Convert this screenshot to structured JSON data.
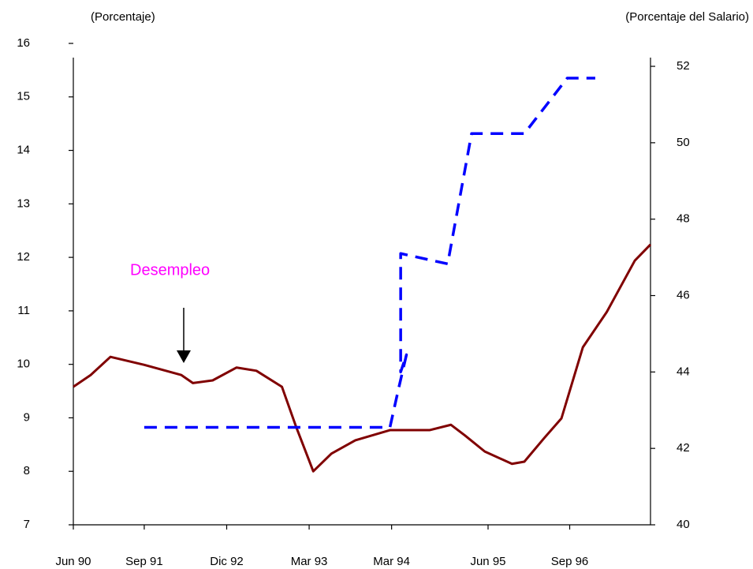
{
  "chart_data": {
    "type": "line",
    "y_label": "(Porcentaje)",
    "y2_label": "(Porcentaje del Salario)",
    "annotation": "Desempleo",
    "xlim": [
      0,
      7
    ],
    "xticks": [
      {
        "value": 0,
        "label": "Jun 90"
      },
      {
        "value": 0.86,
        "label": "Sep 91"
      },
      {
        "value": 1.86,
        "label": "Dic 92"
      },
      {
        "value": 2.86,
        "label": "Mar 93"
      },
      {
        "value": 3.86,
        "label": "Mar 94"
      },
      {
        "value": 5.03,
        "label": "Jun 95"
      },
      {
        "value": 6.02,
        "label": "Sep 96"
      }
    ],
    "ylim": [
      7,
      16
    ],
    "yticks": [
      7,
      8,
      9,
      10,
      11,
      12,
      13,
      14,
      15,
      16
    ],
    "y2lim": [
      40,
      52.6
    ],
    "y2ticks": [
      40,
      42,
      44,
      46,
      48,
      50,
      52
    ],
    "series": [
      {
        "color": "#800000",
        "style": "solid",
        "x": [
          0,
          0.21,
          0.45,
          0.86,
          1.31,
          1.45,
          1.69,
          1.98,
          2.22,
          2.53,
          2.7,
          2.91,
          3.13,
          3.42,
          3.84,
          4.32,
          4.58,
          4.75,
          4.99,
          5.32,
          5.47,
          5.71,
          5.92,
          6.18,
          6.47,
          6.81,
          7.0
        ],
        "values": [
          9.58,
          9.8,
          10.14,
          9.99,
          9.8,
          9.65,
          9.7,
          9.94,
          9.88,
          9.58,
          8.84,
          8.0,
          8.33,
          8.58,
          8.77,
          8.77,
          8.87,
          8.67,
          8.37,
          8.14,
          8.18,
          8.62,
          8.99,
          10.32,
          10.98,
          11.94,
          12.24
        ]
      },
      {
        "color": "#0000ff",
        "style": "dashed",
        "axis": "y2",
        "x": [
          0.86,
          3.84,
          3.94,
          4.04,
          3.97,
          3.97,
          4.54,
          4.83,
          5.47,
          5.99,
          6.33
        ],
        "values": [
          42.55,
          42.55,
          43.52,
          44.45,
          44.0,
          47.1,
          46.83,
          50.24,
          50.24,
          51.69,
          51.69
        ]
      }
    ]
  }
}
